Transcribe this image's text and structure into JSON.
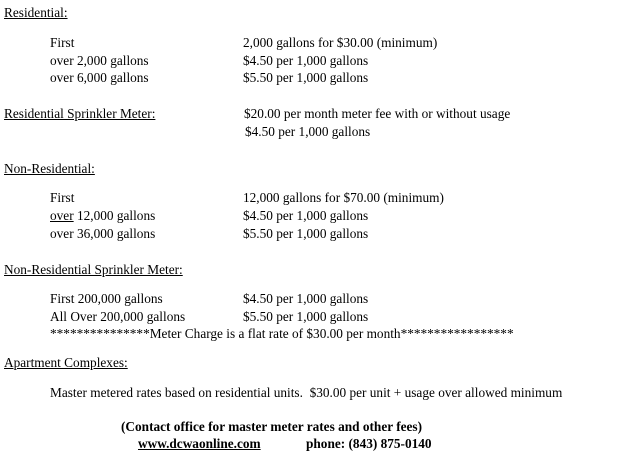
{
  "residential": {
    "heading": "Residential:",
    "rows": [
      {
        "tier": "First",
        "rate": "2,000 gallons for $30.00 (minimum)"
      },
      {
        "tier": "over 2,000 gallons",
        "rate": "$4.50 per 1,000 gallons"
      },
      {
        "tier": "over 6,000 gallons",
        "rate": "$5.50 per 1,000 gallons"
      }
    ]
  },
  "residential_sprinkler": {
    "heading": "Residential Sprinkler Meter:",
    "lines": [
      "$20.00 per month meter fee with or without usage",
      "$4.50 per 1,000 gallons"
    ]
  },
  "non_residential": {
    "heading": "Non-Residential:",
    "rows": [
      {
        "tier": "First",
        "rate": "12,000 gallons for $70.00 (minimum)"
      },
      {
        "tier_prefix": "over",
        "tier": " 12,000 gallons",
        "rate": "$4.50 per 1,000 gallons"
      },
      {
        "tier": "over 36,000 gallons",
        "rate": "$5.50 per 1,000 gallons"
      }
    ]
  },
  "non_residential_sprinkler": {
    "heading": "Non-Residential Sprinkler Meter:",
    "rows": [
      {
        "tier": "First 200,000 gallons",
        "rate": "$4.50 per 1,000 gallons"
      },
      {
        "tier": "All Over 200,000 gallons",
        "rate": "$5.50 per 1,000 gallons"
      }
    ],
    "note": "***************Meter Charge is a flat rate of $30.00 per month*****************"
  },
  "apartments": {
    "heading": "Apartment Complexes:",
    "text": "Master metered rates based on residential units.  $30.00 per unit + usage over allowed minimum"
  },
  "footer": {
    "contact": "(Contact office for master meter rates and other fees)",
    "website": "www.dcwaonline.com",
    "phone": "phone: (843) 875-0140"
  }
}
